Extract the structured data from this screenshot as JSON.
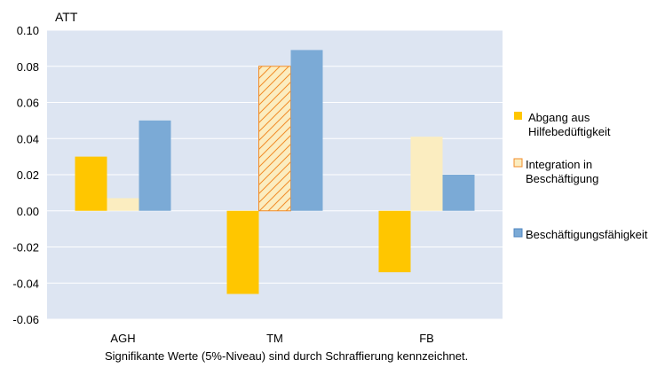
{
  "chart_data": {
    "type": "bar",
    "ylabel": "ATT",
    "ylim": [
      -0.06,
      0.1
    ],
    "yticks": [
      "0.10",
      "0.08",
      "0.06",
      "0.04",
      "0.02",
      "0.00",
      "-0.02",
      "-0.04",
      "-0.06"
    ],
    "ytick_values": [
      0.1,
      0.08,
      0.06,
      0.04,
      0.02,
      0.0,
      -0.02,
      -0.04,
      -0.06
    ],
    "categories": [
      "AGH",
      "TM",
      "FB"
    ],
    "series": [
      {
        "name": "Abgang aus Hilfebedüftigkeit",
        "legend_lines": [
          "Abgang aus",
          "Hilfebedüftigkeit"
        ],
        "color": "#FFC600",
        "values": [
          0.03,
          -0.046,
          -0.034
        ],
        "significant": [
          false,
          false,
          false
        ]
      },
      {
        "name": "Integration in Beschäftigung",
        "legend_lines": [
          "Integration in",
          "Beschäftigung"
        ],
        "color": "#FBEDC0",
        "hatch_color": "#F28C28",
        "values": [
          0.007,
          0.08,
          0.041
        ],
        "significant": [
          false,
          true,
          false
        ]
      },
      {
        "name": "Beschäftigungsfähigkeit",
        "legend_lines": [
          "Beschäftigungsfähigkeit"
        ],
        "color": "#7BAAD6",
        "values": [
          0.05,
          0.089,
          0.02
        ],
        "significant": [
          false,
          false,
          false
        ]
      }
    ],
    "plot_background": "#DDE5F2",
    "grid": true,
    "legend": "right",
    "note": "Signifikante Werte (5%-Niveau) sind durch Schraffierung kennzeichnet."
  }
}
